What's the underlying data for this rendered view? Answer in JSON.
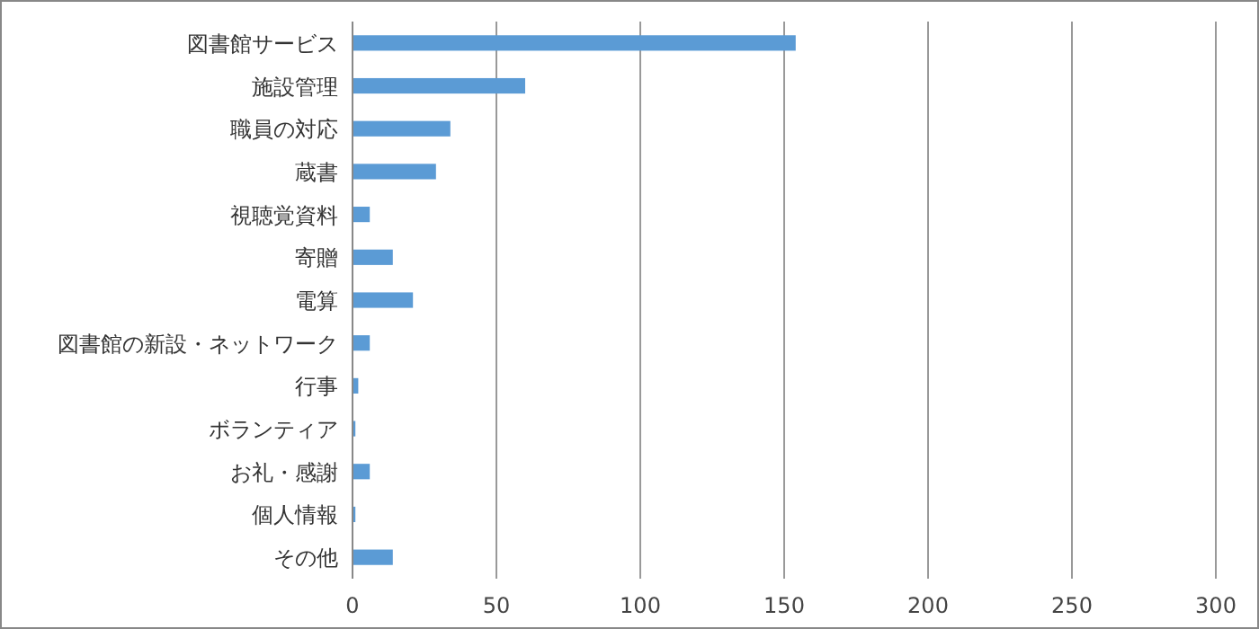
{
  "chart_data": {
    "type": "bar",
    "orientation": "horizontal",
    "categories": [
      "図書館サービス",
      "施設管理",
      "職員の対応",
      "蔵書",
      "視聴覚資料",
      "寄贈",
      "電算",
      "図書館の新設・ネットワーク",
      "行事",
      "ボランティア",
      "お礼・感謝",
      "個人情報",
      "その他"
    ],
    "values": [
      154,
      60,
      34,
      29,
      6,
      14,
      21,
      6,
      2,
      1,
      6,
      1,
      14
    ],
    "color": "#5b9bd5",
    "xlim": [
      0,
      300
    ],
    "xticks": [
      0,
      50,
      100,
      150,
      200,
      250,
      300
    ],
    "grid": "x"
  }
}
